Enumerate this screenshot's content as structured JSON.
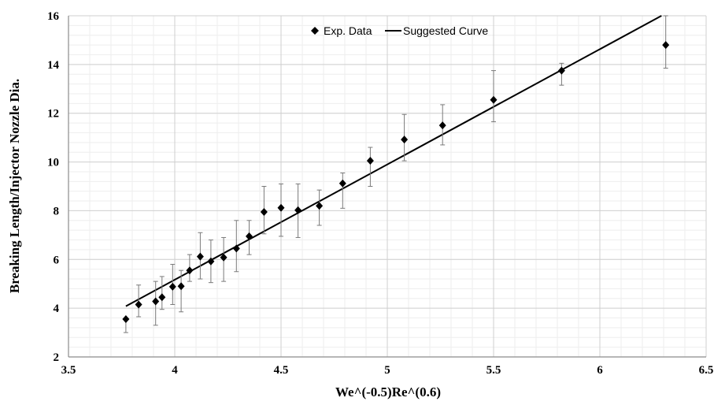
{
  "chart_data": {
    "type": "scatter",
    "title": "",
    "xlabel": "We^(-0.5)Re^(0.6)",
    "ylabel": "Breaking Length/Injector Nozzle Dia.",
    "xlim": [
      3.5,
      6.5
    ],
    "ylim": [
      2,
      16
    ],
    "x_ticks": [
      3.5,
      4,
      4.5,
      5,
      5.5,
      6,
      6.5
    ],
    "x_tick_labels": [
      "3.5",
      "4",
      "4.5",
      "5",
      "5.5",
      "6",
      "6.5"
    ],
    "y_ticks": [
      2,
      4,
      6,
      8,
      10,
      12,
      14,
      16
    ],
    "y_tick_labels": [
      "2",
      "4",
      "6",
      "8",
      "10",
      "12",
      "14",
      "16"
    ],
    "grid": true,
    "legend_position": "top-center",
    "series": [
      {
        "name": "Exp. Data",
        "kind": "points",
        "marker": "diamond",
        "color": "#000000",
        "points": [
          {
            "x": 3.77,
            "y": 3.55,
            "lo": 3.0,
            "hi": 3.55
          },
          {
            "x": 3.83,
            "y": 4.15,
            "lo": 3.65,
            "hi": 4.95
          },
          {
            "x": 3.91,
            "y": 4.28,
            "lo": 3.3,
            "hi": 5.1
          },
          {
            "x": 3.94,
            "y": 4.45,
            "lo": 3.95,
            "hi": 5.3
          },
          {
            "x": 3.99,
            "y": 4.88,
            "lo": 4.15,
            "hi": 5.8
          },
          {
            "x": 4.03,
            "y": 4.9,
            "lo": 3.85,
            "hi": 5.55
          },
          {
            "x": 4.07,
            "y": 5.55,
            "lo": 5.1,
            "hi": 6.2
          },
          {
            "x": 4.12,
            "y": 6.12,
            "lo": 5.2,
            "hi": 7.1
          },
          {
            "x": 4.17,
            "y": 5.92,
            "lo": 5.05,
            "hi": 6.8
          },
          {
            "x": 4.23,
            "y": 6.08,
            "lo": 5.1,
            "hi": 6.9
          },
          {
            "x": 4.29,
            "y": 6.45,
            "lo": 5.5,
            "hi": 7.6
          },
          {
            "x": 4.35,
            "y": 6.95,
            "lo": 6.2,
            "hi": 7.6
          },
          {
            "x": 4.42,
            "y": 7.95,
            "lo": 7.05,
            "hi": 9.0
          },
          {
            "x": 4.5,
            "y": 8.12,
            "lo": 6.95,
            "hi": 9.1
          },
          {
            "x": 4.58,
            "y": 8.02,
            "lo": 6.9,
            "hi": 9.1
          },
          {
            "x": 4.68,
            "y": 8.2,
            "lo": 7.4,
            "hi": 8.85
          },
          {
            "x": 4.79,
            "y": 9.12,
            "lo": 8.1,
            "hi": 9.55
          },
          {
            "x": 4.92,
            "y": 10.05,
            "lo": 9.0,
            "hi": 10.6
          },
          {
            "x": 5.08,
            "y": 10.92,
            "lo": 10.05,
            "hi": 11.95
          },
          {
            "x": 5.26,
            "y": 11.5,
            "lo": 10.7,
            "hi": 12.35
          },
          {
            "x": 5.5,
            "y": 12.55,
            "lo": 11.65,
            "hi": 13.75
          },
          {
            "x": 5.82,
            "y": 13.75,
            "lo": 13.15,
            "hi": 14.05
          },
          {
            "x": 6.31,
            "y": 14.8,
            "lo": 13.85,
            "hi": 16.0
          }
        ]
      },
      {
        "name": "Suggested Curve",
        "kind": "line",
        "color": "#000000",
        "points": [
          {
            "x": 3.77,
            "y": 4.08
          },
          {
            "x": 6.29,
            "y": 16.0
          }
        ]
      }
    ]
  }
}
